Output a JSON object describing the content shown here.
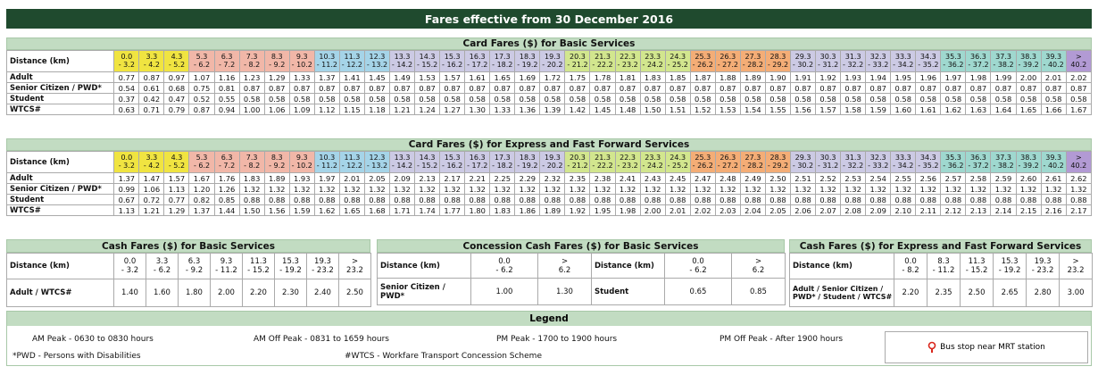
{
  "title": "Fares effective from 30 December 2016",
  "distance_label": "Distance (km)",
  "dist_top": [
    "0.0",
    "3.3",
    "4.3",
    "5.3",
    "6.3",
    "7.3",
    "8.3",
    "9.3",
    "10.3",
    "11.3",
    "12.3",
    "13.3",
    "14.3",
    "15.3",
    "16.3",
    "17.3",
    "18.3",
    "19.3",
    "20.3",
    "21.3",
    "22.3",
    "23.3",
    "24.3",
    "25.3",
    "26.3",
    "27.3",
    "28.3",
    "29.3",
    "30.3",
    "31.3",
    "32.3",
    "33.3",
    "34.3",
    "35.3",
    "36.3",
    "37.3",
    "38.3",
    "39.3",
    ">"
  ],
  "dist_bot": [
    "- 3.2",
    "- 4.2",
    "- 5.2",
    "- 6.2",
    "- 7.2",
    "- 8.2",
    "- 9.2",
    "- 10.2",
    "- 11.2",
    "- 12.2",
    "- 13.2",
    "- 14.2",
    "- 15.2",
    "- 16.2",
    "- 17.2",
    "- 18.2",
    "- 19.2",
    "- 20.2",
    "- 21.2",
    "- 22.2",
    "- 23.2",
    "- 24.2",
    "- 25.2",
    "- 26.2",
    "- 27.2",
    "- 28.2",
    "- 29.2",
    "- 30.2",
    "- 31.2",
    "- 32.2",
    "- 33.2",
    "- 34.2",
    "- 35.2",
    "- 36.2",
    "- 37.2",
    "- 38.2",
    "- 39.2",
    "- 40.2",
    "40.2"
  ],
  "table1": {
    "header": "Card Fares ($) for Basic Services",
    "rows": [
      {
        "label": "Adult",
        "values": [
          "0.77",
          "0.87",
          "0.97",
          "1.07",
          "1.16",
          "1.23",
          "1.29",
          "1.33",
          "1.37",
          "1.41",
          "1.45",
          "1.49",
          "1.53",
          "1.57",
          "1.61",
          "1.65",
          "1.69",
          "1.72",
          "1.75",
          "1.78",
          "1.81",
          "1.83",
          "1.85",
          "1.87",
          "1.88",
          "1.89",
          "1.90",
          "1.91",
          "1.92",
          "1.93",
          "1.94",
          "1.95",
          "1.96",
          "1.97",
          "1.98",
          "1.99",
          "2.00",
          "2.01",
          "2.02"
        ]
      },
      {
        "label": "Senior Citizen / PWD*",
        "values": [
          "0.54",
          "0.61",
          "0.68",
          "0.75",
          "0.81",
          "0.87",
          "0.87",
          "0.87",
          "0.87",
          "0.87",
          "0.87",
          "0.87",
          "0.87",
          "0.87",
          "0.87",
          "0.87",
          "0.87",
          "0.87",
          "0.87",
          "0.87",
          "0.87",
          "0.87",
          "0.87",
          "0.87",
          "0.87",
          "0.87",
          "0.87",
          "0.87",
          "0.87",
          "0.87",
          "0.87",
          "0.87",
          "0.87",
          "0.87",
          "0.87",
          "0.87",
          "0.87",
          "0.87",
          "0.87"
        ]
      },
      {
        "label": "Student",
        "values": [
          "0.37",
          "0.42",
          "0.47",
          "0.52",
          "0.55",
          "0.58",
          "0.58",
          "0.58",
          "0.58",
          "0.58",
          "0.58",
          "0.58",
          "0.58",
          "0.58",
          "0.58",
          "0.58",
          "0.58",
          "0.58",
          "0.58",
          "0.58",
          "0.58",
          "0.58",
          "0.58",
          "0.58",
          "0.58",
          "0.58",
          "0.58",
          "0.58",
          "0.58",
          "0.58",
          "0.58",
          "0.58",
          "0.58",
          "0.58",
          "0.58",
          "0.58",
          "0.58",
          "0.58",
          "0.58"
        ]
      },
      {
        "label": "WTCS#",
        "values": [
          "0.63",
          "0.71",
          "0.79",
          "0.87",
          "0.94",
          "1.00",
          "1.06",
          "1.09",
          "1.12",
          "1.15",
          "1.18",
          "1.21",
          "1.24",
          "1.27",
          "1.30",
          "1.33",
          "1.36",
          "1.39",
          "1.42",
          "1.45",
          "1.48",
          "1.50",
          "1.51",
          "1.52",
          "1.53",
          "1.54",
          "1.55",
          "1.56",
          "1.57",
          "1.58",
          "1.59",
          "1.60",
          "1.61",
          "1.62",
          "1.63",
          "1.64",
          "1.65",
          "1.66",
          "1.67"
        ]
      }
    ]
  },
  "table2": {
    "header": "Card Fares ($) for Express and Fast Forward Services",
    "rows": [
      {
        "label": "Adult",
        "values": [
          "1.37",
          "1.47",
          "1.57",
          "1.67",
          "1.76",
          "1.83",
          "1.89",
          "1.93",
          "1.97",
          "2.01",
          "2.05",
          "2.09",
          "2.13",
          "2.17",
          "2.21",
          "2.25",
          "2.29",
          "2.32",
          "2.35",
          "2.38",
          "2.41",
          "2.43",
          "2.45",
          "2.47",
          "2.48",
          "2.49",
          "2.50",
          "2.51",
          "2.52",
          "2.53",
          "2.54",
          "2.55",
          "2.56",
          "2.57",
          "2.58",
          "2.59",
          "2.60",
          "2.61",
          "2.62"
        ]
      },
      {
        "label": "Senior Citizen / PWD*",
        "values": [
          "0.99",
          "1.06",
          "1.13",
          "1.20",
          "1.26",
          "1.32",
          "1.32",
          "1.32",
          "1.32",
          "1.32",
          "1.32",
          "1.32",
          "1.32",
          "1.32",
          "1.32",
          "1.32",
          "1.32",
          "1.32",
          "1.32",
          "1.32",
          "1.32",
          "1.32",
          "1.32",
          "1.32",
          "1.32",
          "1.32",
          "1.32",
          "1.32",
          "1.32",
          "1.32",
          "1.32",
          "1.32",
          "1.32",
          "1.32",
          "1.32",
          "1.32",
          "1.32",
          "1.32",
          "1.32"
        ]
      },
      {
        "label": "Student",
        "values": [
          "0.67",
          "0.72",
          "0.77",
          "0.82",
          "0.85",
          "0.88",
          "0.88",
          "0.88",
          "0.88",
          "0.88",
          "0.88",
          "0.88",
          "0.88",
          "0.88",
          "0.88",
          "0.88",
          "0.88",
          "0.88",
          "0.88",
          "0.88",
          "0.88",
          "0.88",
          "0.88",
          "0.88",
          "0.88",
          "0.88",
          "0.88",
          "0.88",
          "0.88",
          "0.88",
          "0.88",
          "0.88",
          "0.88",
          "0.88",
          "0.88",
          "0.88",
          "0.88",
          "0.88",
          "0.88"
        ]
      },
      {
        "label": "WTCS#",
        "values": [
          "1.13",
          "1.21",
          "1.29",
          "1.37",
          "1.44",
          "1.50",
          "1.56",
          "1.59",
          "1.62",
          "1.65",
          "1.68",
          "1.71",
          "1.74",
          "1.77",
          "1.80",
          "1.83",
          "1.86",
          "1.89",
          "1.92",
          "1.95",
          "1.98",
          "2.00",
          "2.01",
          "2.02",
          "2.03",
          "2.04",
          "2.05",
          "2.06",
          "2.07",
          "2.08",
          "2.09",
          "2.10",
          "2.11",
          "2.12",
          "2.13",
          "2.14",
          "2.15",
          "2.16",
          "2.17"
        ]
      }
    ]
  },
  "cash_basic": {
    "header": "Cash Fares ($) for Basic Services",
    "dist_top": [
      "0.0",
      "3.3",
      "6.3",
      "9.3",
      "11.3",
      "15.3",
      "19.3",
      ">"
    ],
    "dist_bot": [
      "- 3.2",
      "- 6.2",
      "- 9.2",
      "- 11.2",
      "- 15.2",
      "- 19.2",
      "- 23.2",
      "23.2"
    ],
    "row_label": "Adult / WTCS#",
    "values": [
      "1.40",
      "1.60",
      "1.80",
      "2.00",
      "2.20",
      "2.30",
      "2.40",
      "2.50"
    ]
  },
  "concession": {
    "header": "Concession Cash Fares ($) for Basic Services",
    "dist_top": [
      "0.0",
      ">",
      "0.0",
      ">"
    ],
    "dist_bot": [
      "- 6.2",
      "6.2",
      "- 6.2",
      "6.2"
    ],
    "senior_label": "Senior Citizen / PWD*",
    "senior_values": [
      "1.00",
      "1.30"
    ],
    "student_label": "Student",
    "student_values": [
      "0.65",
      "0.85"
    ]
  },
  "cash_express": {
    "header": "Cash Fares ($) for Express and Fast Forward Services",
    "dist_top": [
      "0.0",
      "8.3",
      "11.3",
      "15.3",
      "19.3",
      ">"
    ],
    "dist_bot": [
      "- 8.2",
      "- 11.2",
      "- 15.2",
      "- 19.2",
      "- 23.2",
      "23.2"
    ],
    "row_label": "Adult / Senior Citizen / PWD* / Student / WTCS#",
    "values": [
      "2.20",
      "2.35",
      "2.50",
      "2.65",
      "2.80",
      "3.00"
    ]
  },
  "legend": {
    "header": "Legend",
    "am_peak": "AM Peak  - 0630 to 0830 hours",
    "am_off": "AM Off Peak  - 0831 to 1659 hours",
    "pm_peak": "PM Peak  - 1700 to 1900 hours",
    "pm_off": "PM Off Peak  - After 1900 hours",
    "pwd": "*PWD - Persons with Disabilities",
    "wtcs": "#WTCS - Workfare Transport Concession Scheme",
    "mrt": "Bus stop near MRT station"
  },
  "colors": {
    "title_bg": "#1f4a2e",
    "header_bg": "#c2dcc2",
    "yellow": "#f0e441",
    "pink": "#f1b7a8",
    "blue": "#a5d4e8",
    "lavender": "#cccae4",
    "lime": "#d2e68e",
    "orange": "#f4ad76",
    "teal": "#9fd8cf",
    "purple": "#b29ad4"
  },
  "icons": {
    "mrt": "mrt-station-icon"
  }
}
